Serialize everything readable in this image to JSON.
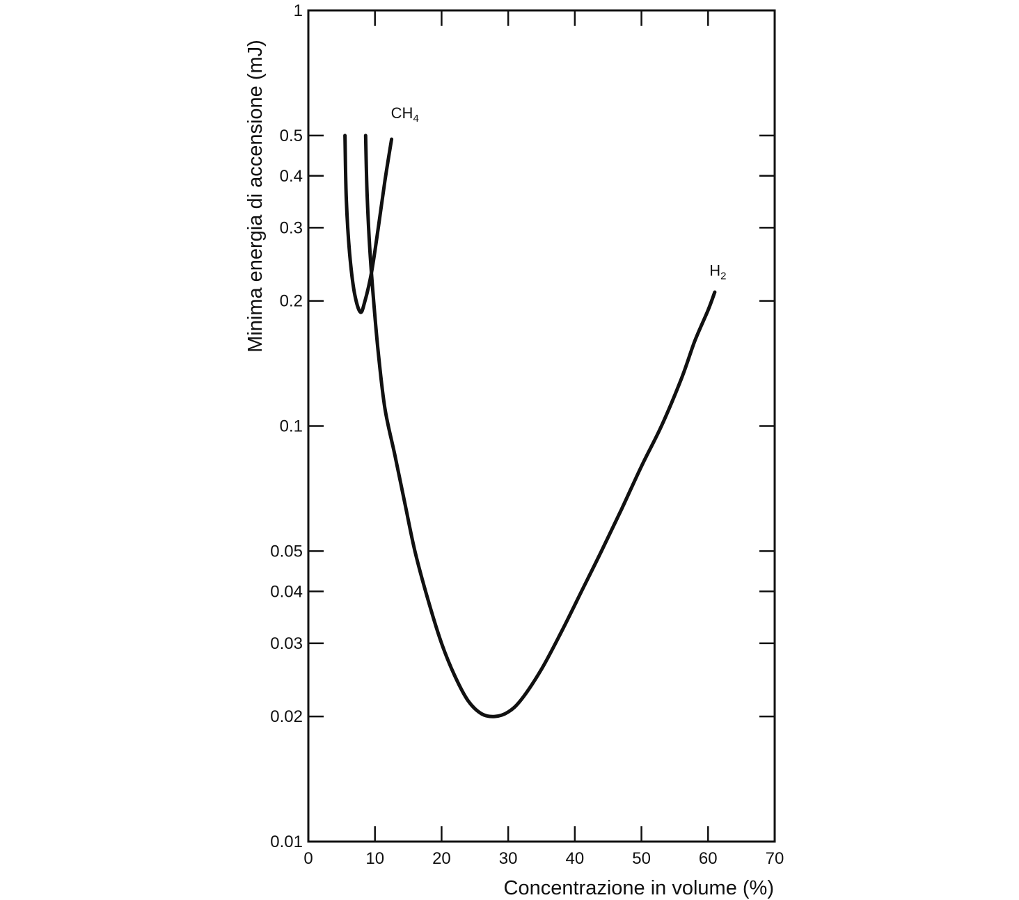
{
  "chart_data": {
    "type": "line",
    "xlabel": "Concentrazione in volume (%)",
    "ylabel": "Minima energia di accensione (mJ)",
    "xlim": [
      0,
      70
    ],
    "ylim": [
      0.01,
      1
    ],
    "yscale": "log",
    "grid": false,
    "x_ticks": [
      {
        "value": 0,
        "label": "0"
      },
      {
        "value": 10,
        "label": "10"
      },
      {
        "value": 20,
        "label": "20"
      },
      {
        "value": 30,
        "label": "30"
      },
      {
        "value": 40,
        "label": "40"
      },
      {
        "value": 50,
        "label": "50"
      },
      {
        "value": 60,
        "label": "60"
      },
      {
        "value": 70,
        "label": "70"
      }
    ],
    "y_ticks": [
      {
        "value": 1,
        "label": "1"
      },
      {
        "value": 0.5,
        "label": "0.5"
      },
      {
        "value": 0.4,
        "label": "0.4"
      },
      {
        "value": 0.3,
        "label": "0.3"
      },
      {
        "value": 0.2,
        "label": "0.2"
      },
      {
        "value": 0.1,
        "label": "0.1"
      },
      {
        "value": 0.05,
        "label": "0.05"
      },
      {
        "value": 0.04,
        "label": "0.04"
      },
      {
        "value": 0.03,
        "label": "0.03"
      },
      {
        "value": 0.02,
        "label": "0.02"
      },
      {
        "value": 0.01,
        "label": "0.01"
      }
    ],
    "series": [
      {
        "name": "CH",
        "name_sub": "4",
        "label_anchor": {
          "x": 12.4,
          "y": 0.55
        },
        "points": [
          {
            "x": 5.5,
            "y": 0.5
          },
          {
            "x": 5.7,
            "y": 0.35
          },
          {
            "x": 6.2,
            "y": 0.26
          },
          {
            "x": 6.9,
            "y": 0.21
          },
          {
            "x": 7.8,
            "y": 0.188
          },
          {
            "x": 8.5,
            "y": 0.2
          },
          {
            "x": 9.5,
            "y": 0.235
          },
          {
            "x": 10.5,
            "y": 0.3
          },
          {
            "x": 11.5,
            "y": 0.39
          },
          {
            "x": 12.5,
            "y": 0.49
          }
        ]
      },
      {
        "name": "H",
        "name_sub": "2",
        "label_anchor": {
          "x": 60.2,
          "y": 0.23
        },
        "points": [
          {
            "x": 8.6,
            "y": 0.5
          },
          {
            "x": 8.8,
            "y": 0.37
          },
          {
            "x": 9.2,
            "y": 0.27
          },
          {
            "x": 9.8,
            "y": 0.2
          },
          {
            "x": 10.5,
            "y": 0.15
          },
          {
            "x": 11.5,
            "y": 0.11
          },
          {
            "x": 13.0,
            "y": 0.085
          },
          {
            "x": 14.5,
            "y": 0.065
          },
          {
            "x": 16.0,
            "y": 0.05
          },
          {
            "x": 18.0,
            "y": 0.038
          },
          {
            "x": 20.0,
            "y": 0.03
          },
          {
            "x": 22.0,
            "y": 0.025
          },
          {
            "x": 24.0,
            "y": 0.0218
          },
          {
            "x": 26.0,
            "y": 0.0203
          },
          {
            "x": 28.0,
            "y": 0.02
          },
          {
            "x": 30.0,
            "y": 0.0205
          },
          {
            "x": 32.0,
            "y": 0.022
          },
          {
            "x": 35.0,
            "y": 0.026
          },
          {
            "x": 38.0,
            "y": 0.032
          },
          {
            "x": 41.0,
            "y": 0.04
          },
          {
            "x": 44.0,
            "y": 0.05
          },
          {
            "x": 47.0,
            "y": 0.063
          },
          {
            "x": 50.0,
            "y": 0.08
          },
          {
            "x": 53.0,
            "y": 0.1
          },
          {
            "x": 56.0,
            "y": 0.13
          },
          {
            "x": 58.0,
            "y": 0.16
          },
          {
            "x": 60.0,
            "y": 0.19
          },
          {
            "x": 61.0,
            "y": 0.21
          }
        ]
      }
    ]
  }
}
